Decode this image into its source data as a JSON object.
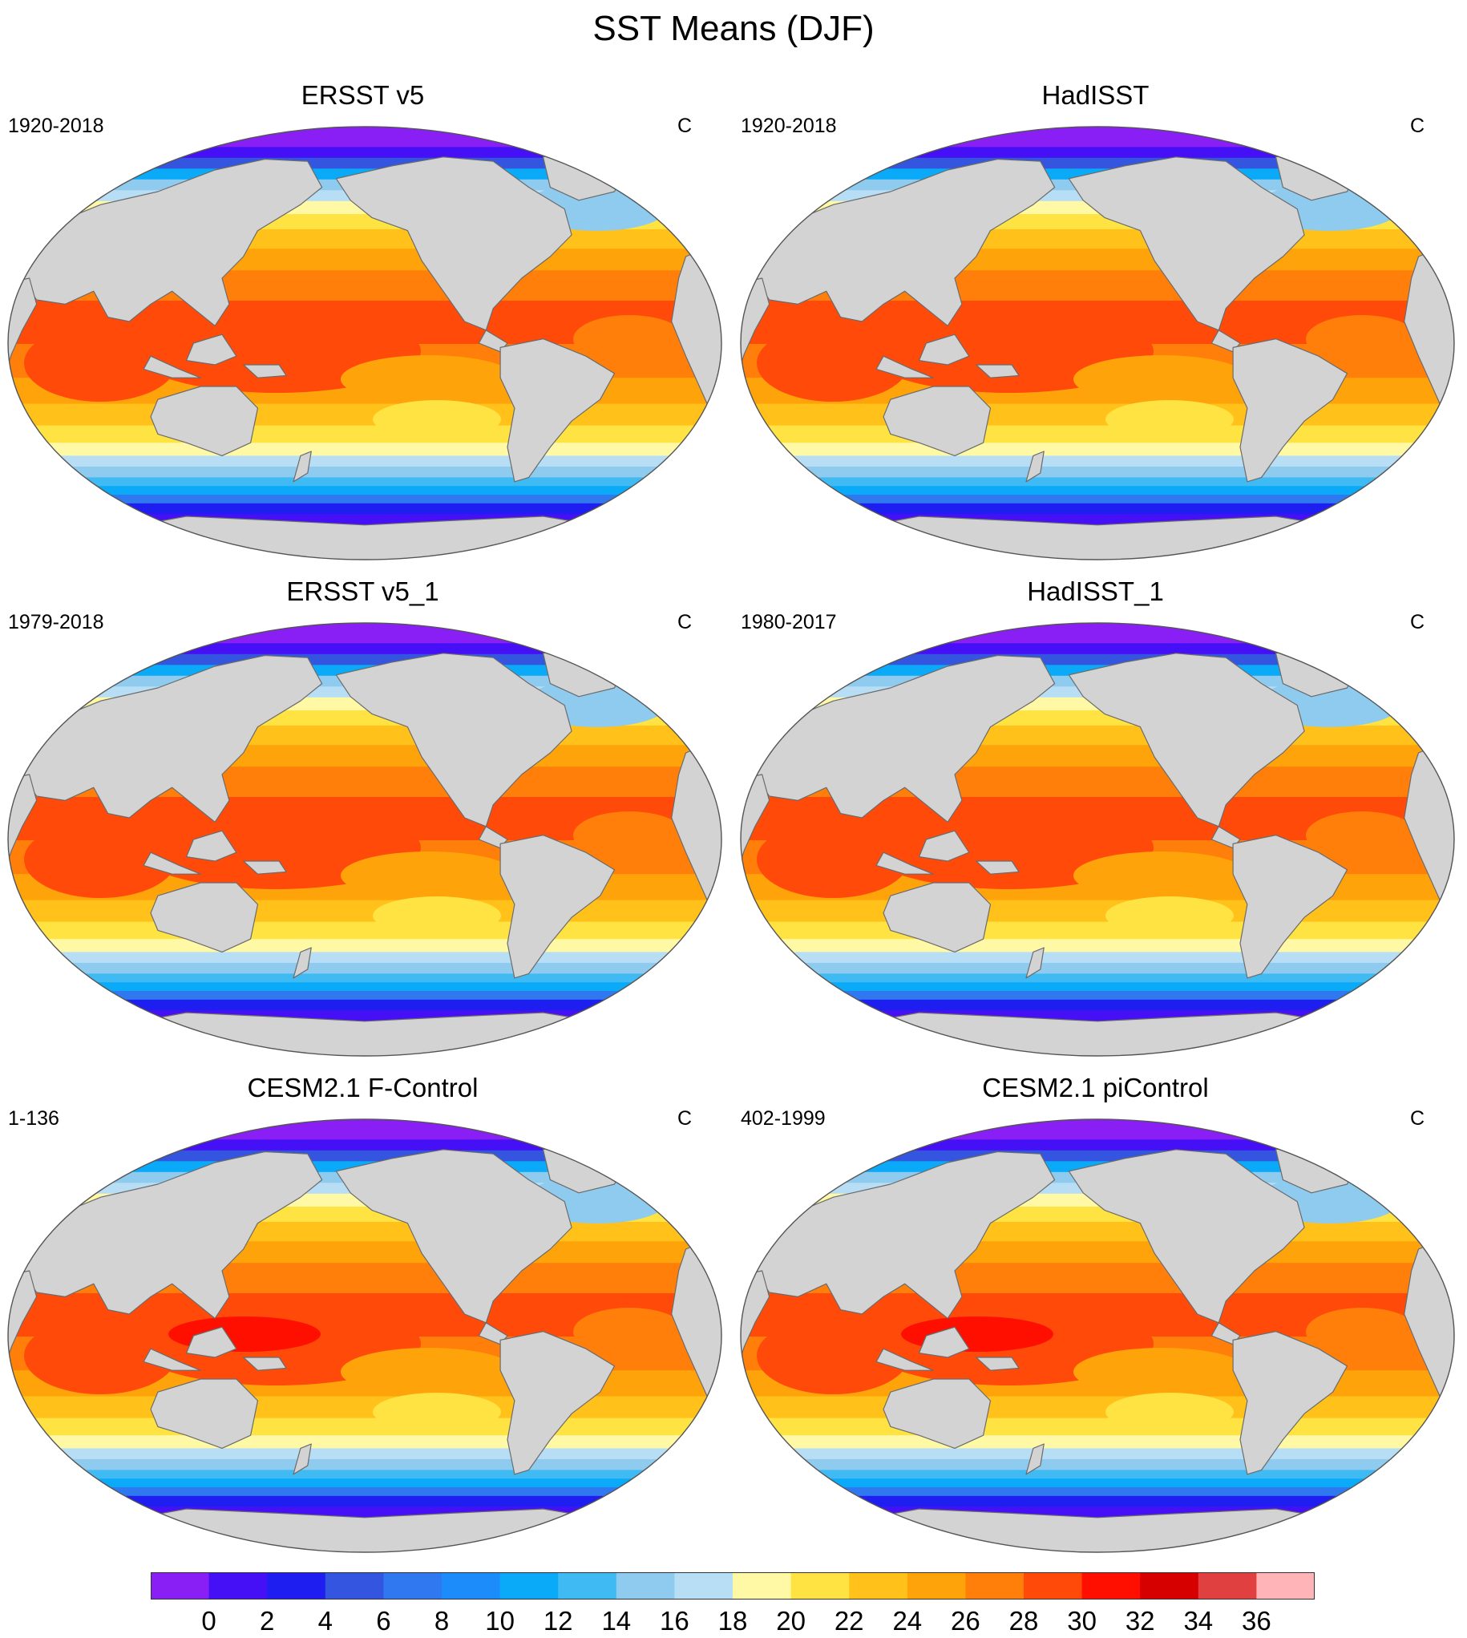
{
  "title": "SST Means (DJF)",
  "units_note": "C",
  "panels": [
    {
      "title": "ERSST v5",
      "period": "1920-2018",
      "units": "C",
      "variant": "ersst"
    },
    {
      "title": "HadISST",
      "period": "1920-2018",
      "units": "C",
      "variant": "hadisst"
    },
    {
      "title": "ERSST v5_1",
      "period": "1979-2018",
      "units": "C",
      "variant": "ersst"
    },
    {
      "title": "HadISST_1",
      "period": "1980-2017",
      "units": "C",
      "variant": "hadisst"
    },
    {
      "title": "CESM2.1 F-Control",
      "period": "1-136",
      "units": "C",
      "variant": "cesm"
    },
    {
      "title": "CESM2.1 piControl",
      "period": "402-1999",
      "units": "C",
      "variant": "cesm"
    }
  ],
  "colorbar": {
    "labels": [
      "0",
      "2",
      "4",
      "6",
      "8",
      "10",
      "12",
      "14",
      "16",
      "18",
      "20",
      "22",
      "24",
      "26",
      "28",
      "30",
      "32",
      "34",
      "36"
    ],
    "colors": [
      "#8a1ff5",
      "#4510f5",
      "#1e1ef0",
      "#3355e0",
      "#2f78f0",
      "#1c8cfa",
      "#0aaaf8",
      "#3fbaf2",
      "#8ecbee",
      "#b8def5",
      "#fff9a6",
      "#ffe342",
      "#ffc11a",
      "#ffa30a",
      "#ff7f0a",
      "#ff4a0a",
      "#ff0f00",
      "#d60000",
      "#e04040",
      "#ffb4b8"
    ]
  },
  "colors": {
    "land": "#d3d3d3",
    "land_outline": "#6b6b6b",
    "globe_outline": "#555555"
  }
}
